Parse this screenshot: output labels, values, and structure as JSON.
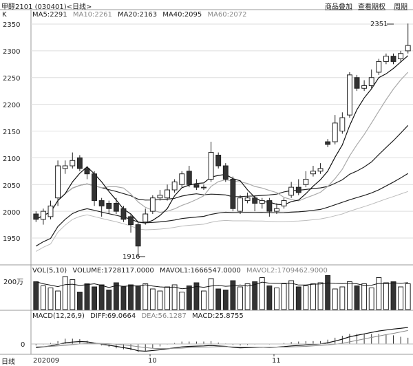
{
  "header": {
    "title": "甲醇2101 (030401)<日线>",
    "buttons": [
      {
        "label": "商品叠加"
      },
      {
        "label": "查看期权"
      },
      {
        "label": "周期"
      }
    ]
  },
  "ma_legend": {
    "k_label": "K",
    "ma5": "MA5:2291",
    "ma10": "MA10:2261",
    "ma20": "MA20:2163",
    "ma40": "MA40:2095",
    "ma60": "MA60:2072"
  },
  "vol_legend": {
    "vol": "VOL(5,10)",
    "volume": "VOLUME:1728117.0000",
    "mavol1": "MAVOL1:1666547.0000",
    "mavol2": "MAVOL2:1709462.9000"
  },
  "macd_legend": {
    "macd": "MACD(12,26,9)",
    "diff": "DIFF:69.0664",
    "dea": "DEA:56.1287",
    "macdval": "MACD:25.8755"
  },
  "axis": {
    "price_ticks": [
      "2350",
      "2300",
      "2250",
      "2200",
      "2150",
      "2100",
      "2050",
      "2000",
      "1950"
    ],
    "vol_tick": "200万",
    "macd_tick": "0",
    "x_labels": [
      "202009",
      "10",
      "11"
    ],
    "period_label": "日线"
  },
  "annotations": {
    "high": "2351",
    "low": "1916"
  },
  "colors": {
    "up": "#ffffff",
    "down": "#333333",
    "ma5": "#111111",
    "ma10": "#aaaaaa",
    "ma20": "#222222",
    "ma40": "#222222",
    "ma60": "#bbbbbb"
  },
  "chart_data": {
    "type": "candlestick",
    "ylim": [
      1925,
      2370
    ],
    "candles": [
      [
        1995,
        1985,
        2000,
        1980
      ],
      [
        1985,
        2000,
        2005,
        1975
      ],
      [
        1990,
        2010,
        2020,
        1985
      ],
      [
        2025,
        2085,
        2095,
        2010
      ],
      [
        2080,
        2085,
        2095,
        2070
      ],
      [
        2085,
        2095,
        2110,
        2080
      ],
      [
        2100,
        2080,
        2105,
        2075
      ],
      [
        2080,
        2070,
        2085,
        2060
      ],
      [
        2070,
        2020,
        2075,
        2010
      ],
      [
        2020,
        2010,
        2025,
        1990
      ],
      [
        2015,
        2005,
        2020,
        1995
      ],
      [
        2015,
        2000,
        2025,
        1995
      ],
      [
        2005,
        1985,
        2010,
        1980
      ],
      [
        1990,
        1975,
        1995,
        1960
      ],
      [
        1975,
        1935,
        1980,
        1916
      ],
      [
        1980,
        1995,
        2005,
        1975
      ],
      [
        2000,
        2025,
        2030,
        1995
      ],
      [
        2025,
        2030,
        2040,
        2020
      ],
      [
        2025,
        2040,
        2050,
        2020
      ],
      [
        2040,
        2055,
        2060,
        2035
      ],
      [
        2050,
        2070,
        2075,
        2045
      ],
      [
        2075,
        2050,
        2085,
        2045
      ],
      [
        2050,
        2045,
        2060,
        2040
      ],
      [
        2045,
        2045,
        2050,
        2040
      ],
      [
        2060,
        2110,
        2130,
        2055
      ],
      [
        2105,
        2085,
        2110,
        2080
      ],
      [
        2085,
        2060,
        2090,
        2055
      ],
      [
        2060,
        2005,
        2065,
        2000
      ],
      [
        2000,
        2025,
        2030,
        1995
      ],
      [
        2020,
        2025,
        2035,
        2015
      ],
      [
        2025,
        2015,
        2030,
        2000
      ],
      [
        2015,
        2020,
        2025,
        2005
      ],
      [
        2020,
        2000,
        2025,
        1990
      ],
      [
        2000,
        2005,
        2015,
        1995
      ],
      [
        2010,
        2020,
        2025,
        2005
      ],
      [
        2030,
        2045,
        2055,
        2025
      ],
      [
        2045,
        2035,
        2060,
        2030
      ],
      [
        2050,
        2060,
        2075,
        2045
      ],
      [
        2070,
        2075,
        2085,
        2065
      ],
      [
        2075,
        2080,
        2090,
        2070
      ],
      [
        2130,
        2125,
        2135,
        2120
      ],
      [
        2130,
        2165,
        2180,
        2125
      ],
      [
        2150,
        2175,
        2185,
        2145
      ],
      [
        2180,
        2255,
        2260,
        2175
      ],
      [
        2250,
        2230,
        2255,
        2225
      ],
      [
        2230,
        2235,
        2245,
        2225
      ],
      [
        2235,
        2250,
        2265,
        2230
      ],
      [
        2260,
        2280,
        2285,
        2255
      ],
      [
        2280,
        2290,
        2295,
        2275
      ],
      [
        2290,
        2280,
        2295,
        2275
      ],
      [
        2285,
        2295,
        2300,
        2280
      ],
      [
        2300,
        2310,
        2351,
        2295
      ]
    ],
    "volume": [
      135,
      115,
      105,
      90,
      160,
      145,
      85,
      125,
      110,
      120,
      95,
      130,
      110,
      120,
      115,
      125,
      100,
      90,
      110,
      120,
      85,
      115,
      130,
      90,
      150,
      100,
      95,
      140,
      110,
      125,
      135,
      155,
      115,
      105,
      125,
      140,
      110,
      115,
      125,
      130,
      165,
      100,
      110,
      135,
      115,
      125,
      105,
      155,
      130,
      135,
      110,
      125
    ],
    "macd_diff": [
      -15,
      -12,
      -8,
      -2,
      5,
      8,
      10,
      9,
      4,
      -1,
      -5,
      -10,
      -15,
      -20,
      -28,
      -30,
      -27,
      -24,
      -20,
      -16,
      -12,
      -10,
      -9,
      -8,
      -6,
      -8,
      -10,
      -14,
      -16,
      -15,
      -14,
      -13,
      -14,
      -13,
      -11,
      -8,
      -6,
      -4,
      -2,
      0,
      5,
      12,
      20,
      30,
      36,
      42,
      48,
      54,
      58,
      62,
      65,
      69
    ],
    "macd_dea": [
      -12,
      -11,
      -10,
      -8,
      -6,
      -3,
      0,
      2,
      3,
      2,
      1,
      -1,
      -4,
      -7,
      -11,
      -15,
      -18,
      -19,
      -19,
      -18,
      -17,
      -15,
      -14,
      -13,
      -12,
      -11,
      -11,
      -12,
      -13,
      -13,
      -13,
      -13,
      -13,
      -13,
      -13,
      -12,
      -11,
      -10,
      -8,
      -6,
      -4,
      -1,
      3,
      9,
      15,
      21,
      27,
      33,
      39,
      44,
      50,
      56
    ]
  }
}
